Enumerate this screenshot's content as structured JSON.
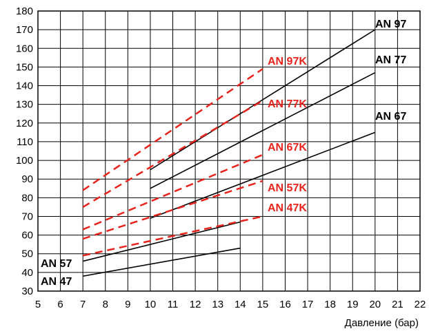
{
  "chart_data": {
    "type": "line",
    "xlabel": "Давление (бар)",
    "ylabel": "",
    "xlim": [
      5,
      22
    ],
    "ylim": [
      30,
      180
    ],
    "x_ticks": [
      5,
      6,
      7,
      8,
      9,
      10,
      11,
      12,
      13,
      14,
      15,
      16,
      17,
      18,
      19,
      20,
      21,
      22
    ],
    "y_ticks": [
      30,
      40,
      50,
      60,
      70,
      80,
      90,
      100,
      110,
      120,
      130,
      140,
      150,
      160,
      170,
      180
    ],
    "grid": true,
    "series": [
      {
        "name": "AN 97",
        "style": "solid",
        "color": "#000000",
        "x": [
          10,
          20
        ],
        "y": [
          95,
          170
        ]
      },
      {
        "name": "AN 77",
        "style": "solid",
        "color": "#000000",
        "x": [
          10,
          20
        ],
        "y": [
          85,
          147
        ]
      },
      {
        "name": "AN 67",
        "style": "solid",
        "color": "#000000",
        "x": [
          10,
          20
        ],
        "y": [
          69,
          115
        ]
      },
      {
        "name": "AN 57",
        "style": "solid",
        "color": "#000000",
        "x": [
          7,
          14
        ],
        "y": [
          46,
          67
        ]
      },
      {
        "name": "AN 47",
        "style": "solid",
        "color": "#000000",
        "x": [
          7,
          14
        ],
        "y": [
          38,
          53
        ]
      },
      {
        "name": "AN 97K",
        "style": "dashed",
        "color": "#e8231b",
        "x": [
          7,
          15
        ],
        "y": [
          84,
          149
        ]
      },
      {
        "name": "AN 77K",
        "style": "dashed",
        "color": "#e8231b",
        "x": [
          7,
          15
        ],
        "y": [
          75,
          132
        ]
      },
      {
        "name": "AN 67K",
        "style": "dashed",
        "color": "#e8231b",
        "x": [
          7,
          15
        ],
        "y": [
          63,
          103
        ]
      },
      {
        "name": "AN 57K",
        "style": "dashed",
        "color": "#e8231b",
        "x": [
          7,
          15
        ],
        "y": [
          58,
          89
        ]
      },
      {
        "name": "AN 47K",
        "style": "dashed",
        "color": "#e8231b",
        "x": [
          7,
          15
        ],
        "y": [
          49,
          70
        ]
      }
    ]
  }
}
